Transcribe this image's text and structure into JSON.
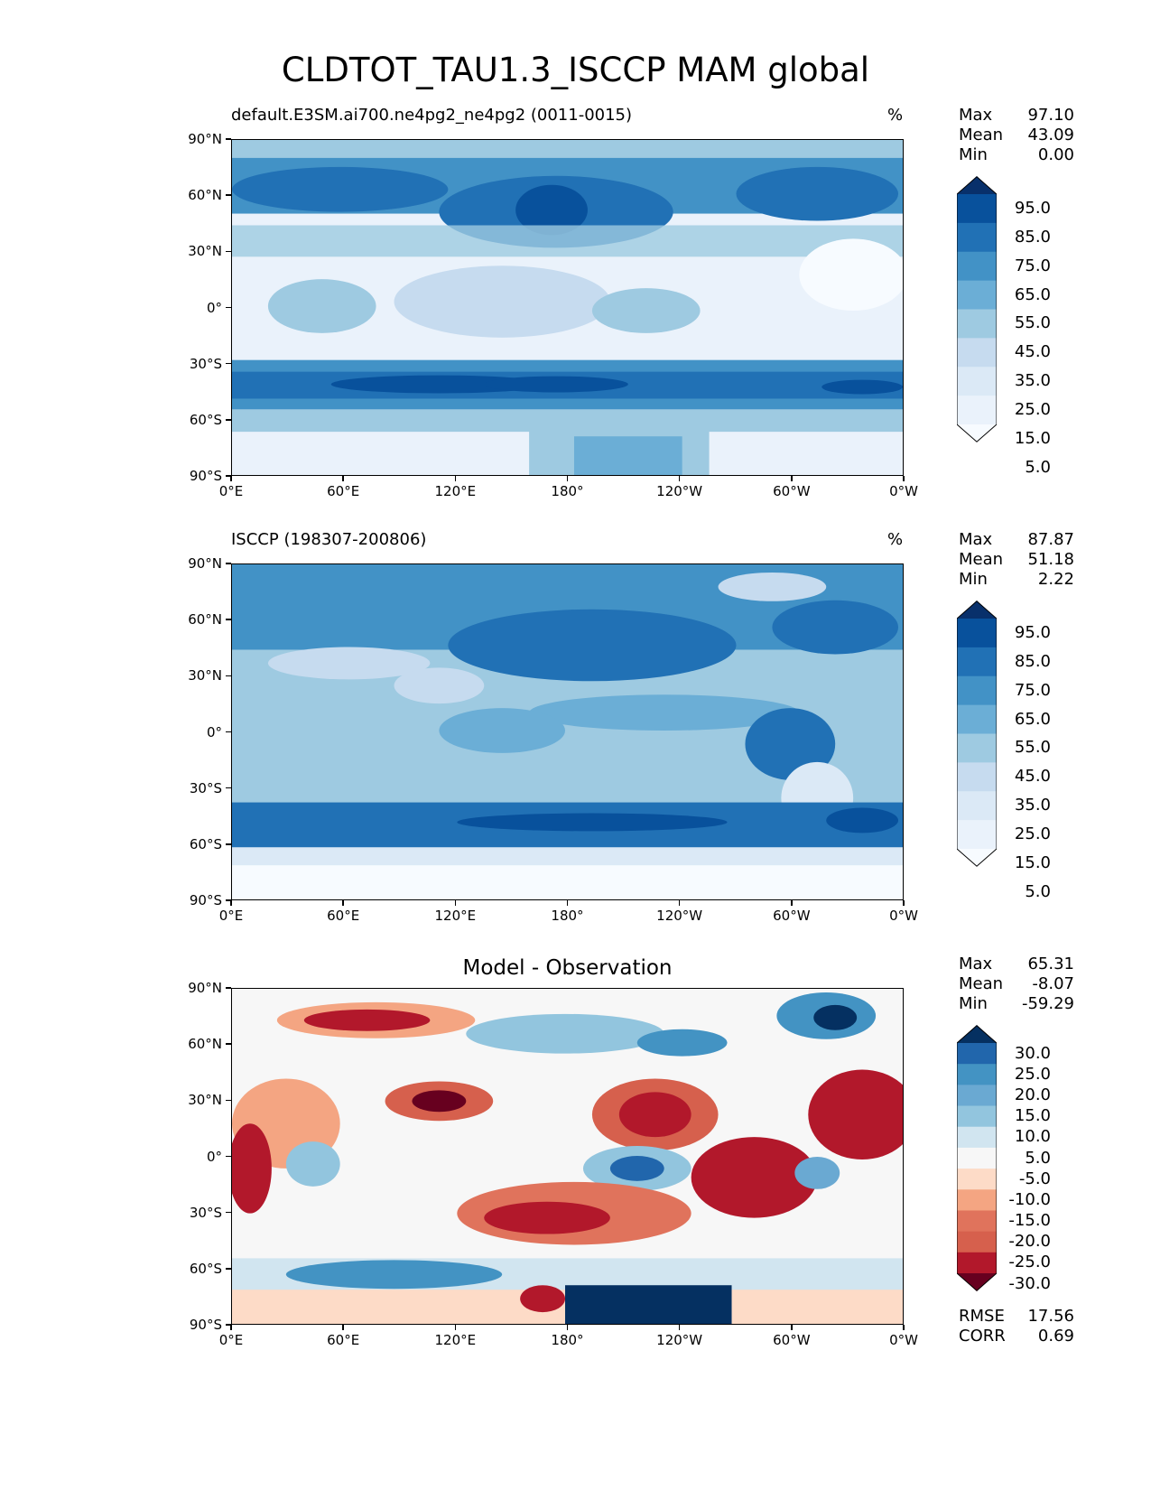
{
  "figure_title": "CLDTOT_TAU1.3_ISCCP MAM global",
  "axes": {
    "x_ticks": [
      "0°E",
      "60°E",
      "120°E",
      "180°",
      "120°W",
      "60°W",
      "0°W"
    ],
    "y_ticks": [
      "90°N",
      "60°N",
      "30°N",
      "0°",
      "30°S",
      "60°S",
      "90°S"
    ]
  },
  "panels": [
    {
      "title_left": "default.E3SM.ai700.ne4pg2_ne4pg2 (0011-0015)",
      "title_right": "%",
      "title_center": "",
      "stats": [
        {
          "label": "Max",
          "value": "97.10"
        },
        {
          "label": "Mean",
          "value": "43.09"
        },
        {
          "label": "Min",
          "value": "0.00"
        }
      ],
      "colorbar": {
        "labels": [
          "95.0",
          "85.0",
          "75.0",
          "65.0",
          "55.0",
          "45.0",
          "35.0",
          "25.0",
          "15.0",
          "5.0"
        ],
        "colors": [
          "#08306b",
          "#08519c",
          "#2171b5",
          "#4292c6",
          "#6baed6",
          "#9ecae1",
          "#c6dbef",
          "#dbe9f6",
          "#eaf2fb",
          "#f7fbff"
        ]
      }
    },
    {
      "title_left": "ISCCP (198307-200806)",
      "title_right": "%",
      "title_center": "",
      "stats": [
        {
          "label": "Max",
          "value": "87.87"
        },
        {
          "label": "Mean",
          "value": "51.18"
        },
        {
          "label": "Min",
          "value": "2.22"
        }
      ],
      "colorbar": {
        "labels": [
          "95.0",
          "85.0",
          "75.0",
          "65.0",
          "55.0",
          "45.0",
          "35.0",
          "25.0",
          "15.0",
          "5.0"
        ],
        "colors": [
          "#08306b",
          "#08519c",
          "#2171b5",
          "#4292c6",
          "#6baed6",
          "#9ecae1",
          "#c6dbef",
          "#dbe9f6",
          "#eaf2fb",
          "#f7fbff"
        ]
      }
    },
    {
      "title_left": "",
      "title_right": "",
      "title_center": "Model - Observation",
      "stats": [
        {
          "label": "Max",
          "value": "65.31"
        },
        {
          "label": "Mean",
          "value": "-8.07"
        },
        {
          "label": "Min",
          "value": "-59.29"
        }
      ],
      "bottom_stats": [
        {
          "label": "RMSE",
          "value": "17.56"
        },
        {
          "label": "CORR",
          "value": "0.69"
        }
      ],
      "colorbar": {
        "labels": [
          "30.0",
          "25.0",
          "20.0",
          "15.0",
          "10.0",
          "5.0",
          "-5.0",
          "-10.0",
          "-15.0",
          "-20.0",
          "-25.0",
          "-30.0"
        ],
        "colors": [
          "#053061",
          "#2166ac",
          "#4393c3",
          "#6aa9d2",
          "#92c5de",
          "#d1e5f0",
          "#f7f7f7",
          "#fddbc7",
          "#f4a582",
          "#e0735c",
          "#d6604d",
          "#b2182b",
          "#67001f"
        ]
      }
    }
  ]
}
